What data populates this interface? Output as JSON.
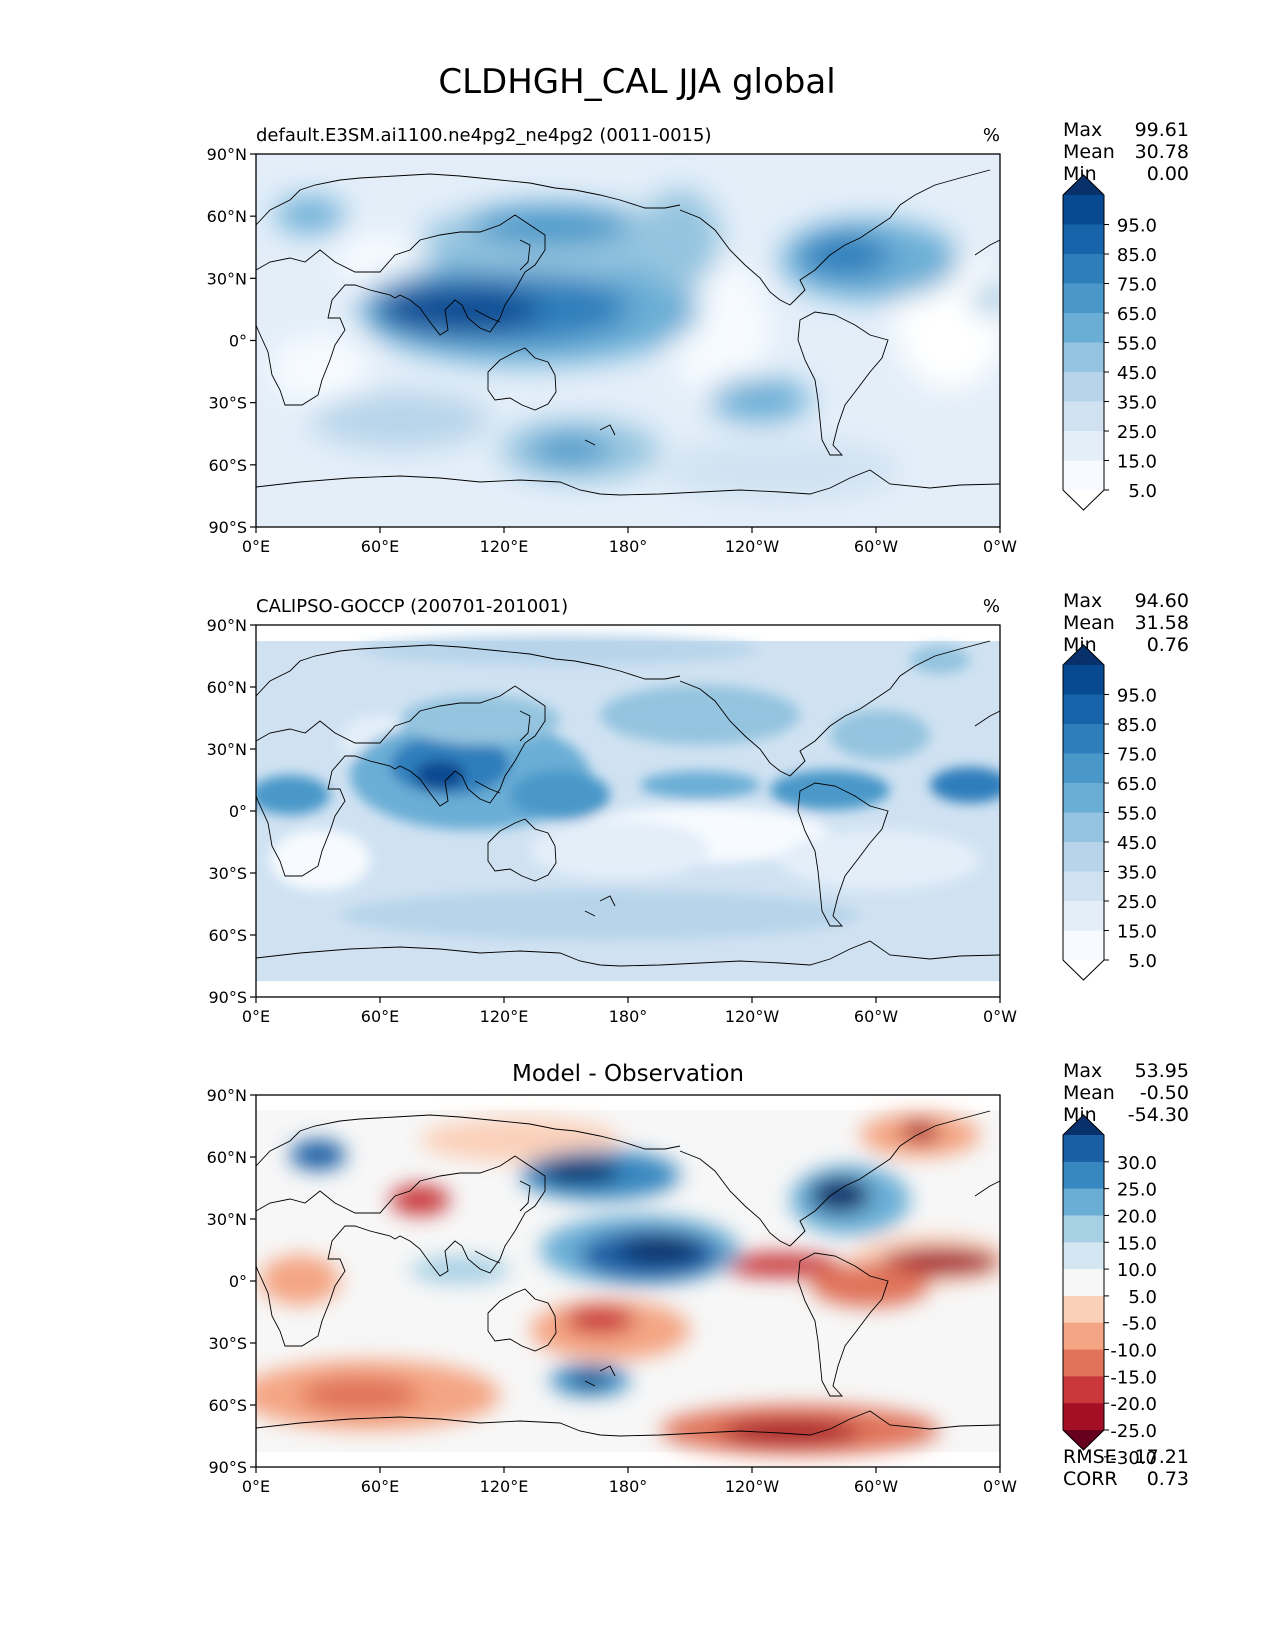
{
  "title": "CLDHGH_CAL JJA global",
  "lat_ticks": [
    "90°N",
    "60°N",
    "30°N",
    "0°",
    "30°S",
    "60°S",
    "90°S"
  ],
  "lon_ticks": [
    "0°E",
    "60°E",
    "120°E",
    "180°",
    "120°W",
    "60°W",
    "0°W"
  ],
  "panels": [
    {
      "id": "model",
      "left_title": "default.E3SM.ai1100.ne4pg2_ne4pg2 (0011-0015)",
      "center_title": "",
      "units": "%",
      "stats": [
        [
          "Max",
          "99.61"
        ],
        [
          "Mean",
          "30.78"
        ],
        [
          "Min",
          "0.00"
        ]
      ],
      "extra_stats": [],
      "colorbar": {
        "labels": [
          "95.0",
          "85.0",
          "75.0",
          "65.0",
          "55.0",
          "45.0",
          "35.0",
          "25.0",
          "15.0",
          "5.0"
        ],
        "colors": [
          "#ffffff",
          "#f7fbff",
          "#e3eef9",
          "#d0e2f2",
          "#b7d4ea",
          "#94c4df",
          "#6aaed6",
          "#4a98c9",
          "#2e7ebc",
          "#1764ab",
          "#084a91",
          "#08306b"
        ]
      }
    },
    {
      "id": "obs",
      "left_title": "CALIPSO-GOCCP (200701-201001)",
      "center_title": "",
      "units": "%",
      "stats": [
        [
          "Max",
          "94.60"
        ],
        [
          "Mean",
          "31.58"
        ],
        [
          "Min",
          "0.76"
        ]
      ],
      "extra_stats": [],
      "colorbar": {
        "labels": [
          "95.0",
          "85.0",
          "75.0",
          "65.0",
          "55.0",
          "45.0",
          "35.0",
          "25.0",
          "15.0",
          "5.0"
        ],
        "colors": [
          "#ffffff",
          "#f7fbff",
          "#e3eef9",
          "#d0e2f2",
          "#b7d4ea",
          "#94c4df",
          "#6aaed6",
          "#4a98c9",
          "#2e7ebc",
          "#1764ab",
          "#084a91",
          "#08306b"
        ]
      }
    },
    {
      "id": "diff",
      "left_title": "",
      "center_title": "Model - Observation",
      "units": "",
      "stats": [
        [
          "Max",
          "53.95"
        ],
        [
          "Mean",
          "-0.50"
        ],
        [
          "Min",
          "-54.30"
        ]
      ],
      "extra_stats": [
        [
          "RMSE",
          "17.21"
        ],
        [
          "CORR",
          "0.73"
        ]
      ],
      "colorbar": {
        "labels": [
          "30.0",
          "25.0",
          "20.0",
          "15.0",
          "10.0",
          "5.0",
          "-5.0",
          "-10.0",
          "-15.0",
          "-20.0",
          "-25.0",
          "-30.0"
        ],
        "colors": [
          "#67001f",
          "#a50f26",
          "#c9373a",
          "#e0735a",
          "#f4a583",
          "#fbd0b9",
          "#f7f7f7",
          "#d4e6f1",
          "#a7d0e4",
          "#6aaed6",
          "#3787c0",
          "#1a5fa4",
          "#08306b"
        ]
      }
    }
  ],
  "colors": {
    "blues": [
      "#ffffff",
      "#f7fbff",
      "#e3eef9",
      "#d0e2f2",
      "#b7d4ea",
      "#94c4df",
      "#6aaed6",
      "#4a98c9",
      "#2e7ebc",
      "#1764ab",
      "#084a91",
      "#08306b"
    ],
    "diverging": [
      "#67001f",
      "#a50f26",
      "#c9373a",
      "#e0735a",
      "#f4a583",
      "#fbd0b9",
      "#f7f7f7",
      "#d4e6f1",
      "#a7d0e4",
      "#6aaed6",
      "#3787c0",
      "#1a5fa4",
      "#08306b"
    ]
  }
}
